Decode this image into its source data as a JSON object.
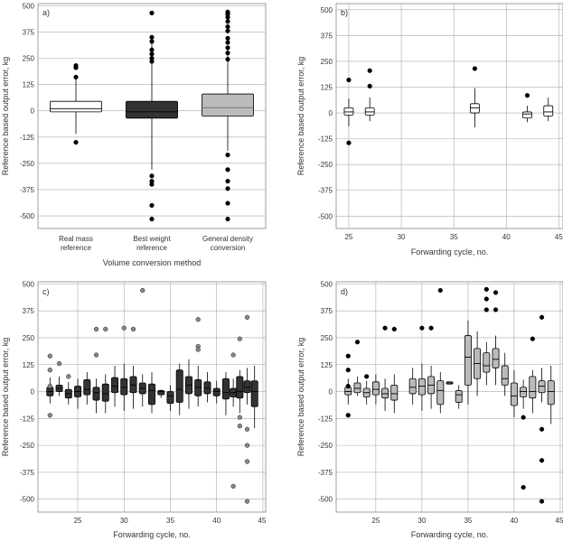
{
  "chart_data": [
    {
      "panel": "a)",
      "type": "box",
      "xlabel": "Volume conversion method",
      "ylabel": "Reference based output error, kg",
      "ylim": [
        -560,
        510
      ],
      "yticks": [
        500,
        375,
        250,
        125,
        0,
        -125,
        -250,
        -375,
        -500
      ],
      "ytick_labels": [
        "500",
        "375",
        "250",
        "125",
        "0",
        "-125",
        "-250",
        "-375",
        "-500"
      ],
      "categories": [
        [
          "Real mass",
          "reference"
        ],
        [
          "Best weight",
          "reference"
        ],
        [
          "General density",
          "conversion"
        ]
      ],
      "colors": {
        "box_fill": [
          "#ffffff",
          "#333333",
          "#bbbbbb"
        ],
        "median": [
          "#333333",
          "#000000",
          "#666666"
        ]
      },
      "boxes": [
        {
          "q1": -5,
          "median": 10,
          "q3": 45,
          "whisker_low": -110,
          "whisker_high": 150,
          "outliers": [
            215,
            205,
            160,
            -150
          ]
        },
        {
          "q1": -35,
          "median": -5,
          "q3": 45,
          "whisker_low": -280,
          "whisker_high": 320,
          "outliers": [
            465,
            350,
            330,
            290,
            270,
            250,
            235,
            -310,
            -335,
            -350,
            -450,
            -515
          ]
        },
        {
          "q1": -25,
          "median": 15,
          "q3": 80,
          "whisker_low": -190,
          "whisker_high": 310,
          "outliers": [
            470,
            460,
            445,
            425,
            400,
            380,
            345,
            325,
            300,
            275,
            245,
            -210,
            -280,
            -335,
            -370,
            -440,
            -515
          ]
        }
      ]
    },
    {
      "panel": "b)",
      "type": "box",
      "xlabel": "Forwarding cycle, no.",
      "ylabel": "Reference based output error, kg",
      "xlim": [
        23.8,
        45.4
      ],
      "ylim": [
        -560,
        530
      ],
      "xticks": [
        25,
        30,
        35,
        40,
        45
      ],
      "yticks": [
        500,
        375,
        250,
        125,
        0,
        -125,
        -250,
        -375,
        -500
      ],
      "ytick_labels": [
        "500",
        "375",
        "250",
        "125",
        "0",
        "-125",
        "-250",
        "-375",
        "-500"
      ],
      "colors": {
        "box_fill": "#ffffff"
      },
      "boxes": [
        {
          "x": 25,
          "q1": -10,
          "median": 5,
          "q3": 25,
          "whisker_low": -65,
          "whisker_high": 70,
          "outliers": [
            160,
            -145
          ]
        },
        {
          "x": 27,
          "q1": -10,
          "median": 5,
          "q3": 25,
          "whisker_low": -40,
          "whisker_high": 75,
          "outliers": [
            205,
            130
          ]
        },
        {
          "x": 37,
          "q1": 0,
          "median": 25,
          "q3": 45,
          "whisker_low": -70,
          "whisker_high": 120,
          "outliers": [
            215
          ]
        },
        {
          "x": 42,
          "q1": -25,
          "median": -5,
          "q3": 5,
          "whisker_low": -45,
          "whisker_high": 35,
          "outliers": [
            85
          ]
        },
        {
          "x": 44,
          "q1": -15,
          "median": 5,
          "q3": 35,
          "whisker_low": -40,
          "whisker_high": 75,
          "outliers": []
        }
      ]
    },
    {
      "panel": "c)",
      "type": "box",
      "xlabel": "Forwarding cycle, no.",
      "ylabel": "Reference based output error, kg",
      "xlim": [
        20.7,
        45.3
      ],
      "ylim": [
        -560,
        510
      ],
      "xticks": [
        25,
        30,
        35,
        40,
        45
      ],
      "yticks": [
        500,
        375,
        250,
        125,
        0,
        -125,
        -250,
        -375,
        -500
      ],
      "ytick_labels": [
        "500",
        "375",
        "250",
        "125",
        "0",
        "-125",
        "-250",
        "-375",
        "-500"
      ],
      "colors": {
        "box_fill": "#333333",
        "outlier": "#888888"
      },
      "boxes": [
        {
          "x": 22,
          "q1": -20,
          "median": 0,
          "q3": 20,
          "whisker_low": -55,
          "whisker_high": 65,
          "outliers": [
            165,
            100,
            25,
            -110
          ]
        },
        {
          "x": 23,
          "q1": 0,
          "median": 15,
          "q3": 30,
          "whisker_low": -20,
          "whisker_high": 70,
          "outliers": [
            130
          ]
        },
        {
          "x": 24,
          "q1": -30,
          "median": -10,
          "q3": 10,
          "whisker_low": -60,
          "whisker_high": 45,
          "outliers": [
            70
          ]
        },
        {
          "x": 25,
          "q1": -25,
          "median": 0,
          "q3": 25,
          "whisker_low": -80,
          "whisker_high": 60,
          "outliers": []
        },
        {
          "x": 26,
          "q1": -15,
          "median": 10,
          "q3": 55,
          "whisker_low": -60,
          "whisker_high": 90,
          "outliers": []
        },
        {
          "x": 27,
          "q1": -40,
          "median": -5,
          "q3": 20,
          "whisker_low": -100,
          "whisker_high": 60,
          "outliers": [
            290,
            170
          ]
        },
        {
          "x": 28,
          "q1": -45,
          "median": -10,
          "q3": 35,
          "whisker_low": -100,
          "whisker_high": 80,
          "outliers": [
            290
          ]
        },
        {
          "x": 29,
          "q1": -5,
          "median": 25,
          "q3": 65,
          "whisker_low": -70,
          "whisker_high": 120,
          "outliers": []
        },
        {
          "x": 30,
          "q1": -15,
          "median": 20,
          "q3": 60,
          "whisker_low": -90,
          "whisker_high": 130,
          "outliers": [
            295
          ]
        },
        {
          "x": 31,
          "q1": -5,
          "median": 30,
          "q3": 70,
          "whisker_low": -80,
          "whisker_high": 120,
          "outliers": [
            290
          ]
        },
        {
          "x": 32,
          "q1": -10,
          "median": 15,
          "q3": 40,
          "whisker_low": -70,
          "whisker_high": 80,
          "outliers": [
            470
          ]
        },
        {
          "x": 33,
          "q1": -60,
          "median": 5,
          "q3": 35,
          "whisker_low": -100,
          "whisker_high": 90,
          "outliers": []
        },
        {
          "x": 34,
          "q1": -15,
          "median": 0,
          "q3": 5,
          "whisker_low": -30,
          "whisker_high": 10,
          "outliers": []
        },
        {
          "x": 35,
          "q1": -55,
          "median": -20,
          "q3": 0,
          "whisker_low": -90,
          "whisker_high": 30,
          "outliers": []
        },
        {
          "x": 36,
          "q1": -50,
          "median": 10,
          "q3": 100,
          "whisker_low": -110,
          "whisker_high": 130,
          "outliers": []
        },
        {
          "x": 37,
          "q1": -10,
          "median": 30,
          "q3": 70,
          "whisker_low": -80,
          "whisker_high": 150,
          "outliers": []
        },
        {
          "x": 38,
          "q1": -20,
          "median": 20,
          "q3": 55,
          "whisker_low": -70,
          "whisker_high": 120,
          "outliers": [
            335,
            210,
            195
          ]
        },
        {
          "x": 39,
          "q1": -10,
          "median": 15,
          "q3": 45,
          "whisker_low": -50,
          "whisker_high": 90,
          "outliers": []
        },
        {
          "x": 40,
          "q1": -20,
          "median": 0,
          "q3": 15,
          "whisker_low": -55,
          "whisker_high": 50,
          "outliers": []
        },
        {
          "x": 41,
          "q1": -35,
          "median": -5,
          "q3": 60,
          "whisker_low": -110,
          "whisker_high": 90,
          "outliers": []
        },
        {
          "x": 41.8,
          "q1": -25,
          "median": -5,
          "q3": 15,
          "whisker_low": -70,
          "whisker_high": 60,
          "outliers": [
            170,
            -440
          ]
        },
        {
          "x": 42.5,
          "q1": -30,
          "median": 0,
          "q3": 70,
          "whisker_low": -100,
          "whisker_high": 100,
          "outliers": [
            245,
            -120,
            -160
          ]
        },
        {
          "x": 43.3,
          "q1": -5,
          "median": 20,
          "q3": 50,
          "whisker_low": -60,
          "whisker_high": 110,
          "outliers": [
            345,
            -175,
            -250,
            -325,
            -510
          ]
        },
        {
          "x": 44.1,
          "q1": -70,
          "median": 0,
          "q3": 50,
          "whisker_low": -170,
          "whisker_high": 120,
          "outliers": []
        }
      ]
    },
    {
      "panel": "d)",
      "type": "box",
      "xlabel": "Forwarding cycle, no.",
      "ylabel": "Reference based output error, kg",
      "xlim": [
        20.7,
        45.3
      ],
      "ylim": [
        -560,
        510
      ],
      "xticks": [
        25,
        30,
        35,
        40,
        45
      ],
      "yticks": [
        500,
        375,
        250,
        125,
        0,
        -125,
        -250,
        -375,
        -500
      ],
      "ytick_labels": [
        "500",
        "375",
        "250",
        "125",
        "0",
        "-125",
        "-250",
        "-375",
        "-500"
      ],
      "colors": {
        "box_fill": "#bbbbbb",
        "outlier": "#000000"
      },
      "boxes": [
        {
          "x": 22,
          "q1": -15,
          "median": 0,
          "q3": 20,
          "whisker_low": -60,
          "whisker_high": 60,
          "outliers": [
            165,
            100,
            25,
            -110
          ]
        },
        {
          "x": 23,
          "q1": -5,
          "median": 15,
          "q3": 40,
          "whisker_low": -20,
          "whisker_high": 70,
          "outliers": [
            230
          ]
        },
        {
          "x": 24,
          "q1": -25,
          "median": -5,
          "q3": 15,
          "whisker_low": -60,
          "whisker_high": 50,
          "outliers": [
            70
          ]
        },
        {
          "x": 25,
          "q1": -15,
          "median": 10,
          "q3": 45,
          "whisker_low": -60,
          "whisker_high": 80,
          "outliers": []
        },
        {
          "x": 26,
          "q1": -30,
          "median": -10,
          "q3": 15,
          "whisker_low": -90,
          "whisker_high": 60,
          "outliers": [
            295
          ]
        },
        {
          "x": 27,
          "q1": -40,
          "median": -10,
          "q3": 30,
          "whisker_low": -100,
          "whisker_high": 80,
          "outliers": [
            290
          ]
        },
        {
          "x": 29,
          "q1": -10,
          "median": 20,
          "q3": 60,
          "whisker_low": -60,
          "whisker_high": 110,
          "outliers": []
        },
        {
          "x": 30,
          "q1": -15,
          "median": 25,
          "q3": 60,
          "whisker_low": -90,
          "whisker_high": 130,
          "outliers": [
            295
          ]
        },
        {
          "x": 31,
          "q1": -10,
          "median": 30,
          "q3": 70,
          "whisker_low": -80,
          "whisker_high": 120,
          "outliers": [
            295
          ]
        },
        {
          "x": 32,
          "q1": -60,
          "median": 5,
          "q3": 50,
          "whisker_low": -100,
          "whisker_high": 90,
          "outliers": [
            470
          ]
        },
        {
          "x": 33,
          "q1": 35,
          "median": 40,
          "q3": 45,
          "whisker_low": 35,
          "whisker_high": 45,
          "outliers": []
        },
        {
          "x": 34,
          "q1": -50,
          "median": -15,
          "q3": 5,
          "whisker_low": -80,
          "whisker_high": 30,
          "outliers": []
        },
        {
          "x": 35,
          "q1": 30,
          "median": 160,
          "q3": 260,
          "whisker_low": -60,
          "whisker_high": 330,
          "outliers": []
        },
        {
          "x": 36,
          "q1": 60,
          "median": 130,
          "q3": 200,
          "whisker_low": -20,
          "whisker_high": 280,
          "outliers": []
        },
        {
          "x": 37,
          "q1": 90,
          "median": 120,
          "q3": 180,
          "whisker_low": 30,
          "whisker_high": 230,
          "outliers": [
            475,
            430,
            380
          ]
        },
        {
          "x": 38,
          "q1": 110,
          "median": 150,
          "q3": 200,
          "whisker_low": 30,
          "whisker_high": 260,
          "outliers": [
            460,
            380
          ]
        },
        {
          "x": 39,
          "q1": 30,
          "median": 60,
          "q3": 120,
          "whisker_low": -20,
          "whisker_high": 180,
          "outliers": []
        },
        {
          "x": 40,
          "q1": -65,
          "median": -20,
          "q3": 40,
          "whisker_low": -120,
          "whisker_high": 100,
          "outliers": []
        },
        {
          "x": 41,
          "q1": -25,
          "median": 0,
          "q3": 20,
          "whisker_low": -80,
          "whisker_high": 55,
          "outliers": [
            -120,
            -445
          ]
        },
        {
          "x": 42,
          "q1": -30,
          "median": 0,
          "q3": 70,
          "whisker_low": -100,
          "whisker_high": 100,
          "outliers": [
            245
          ]
        },
        {
          "x": 43,
          "q1": -5,
          "median": 25,
          "q3": 50,
          "whisker_low": -50,
          "whisker_high": 110,
          "outliers": [
            345,
            -175,
            -320,
            -510
          ]
        },
        {
          "x": 44,
          "q1": -60,
          "median": 0,
          "q3": 50,
          "whisker_low": -150,
          "whisker_high": 120,
          "outliers": []
        }
      ]
    }
  ]
}
